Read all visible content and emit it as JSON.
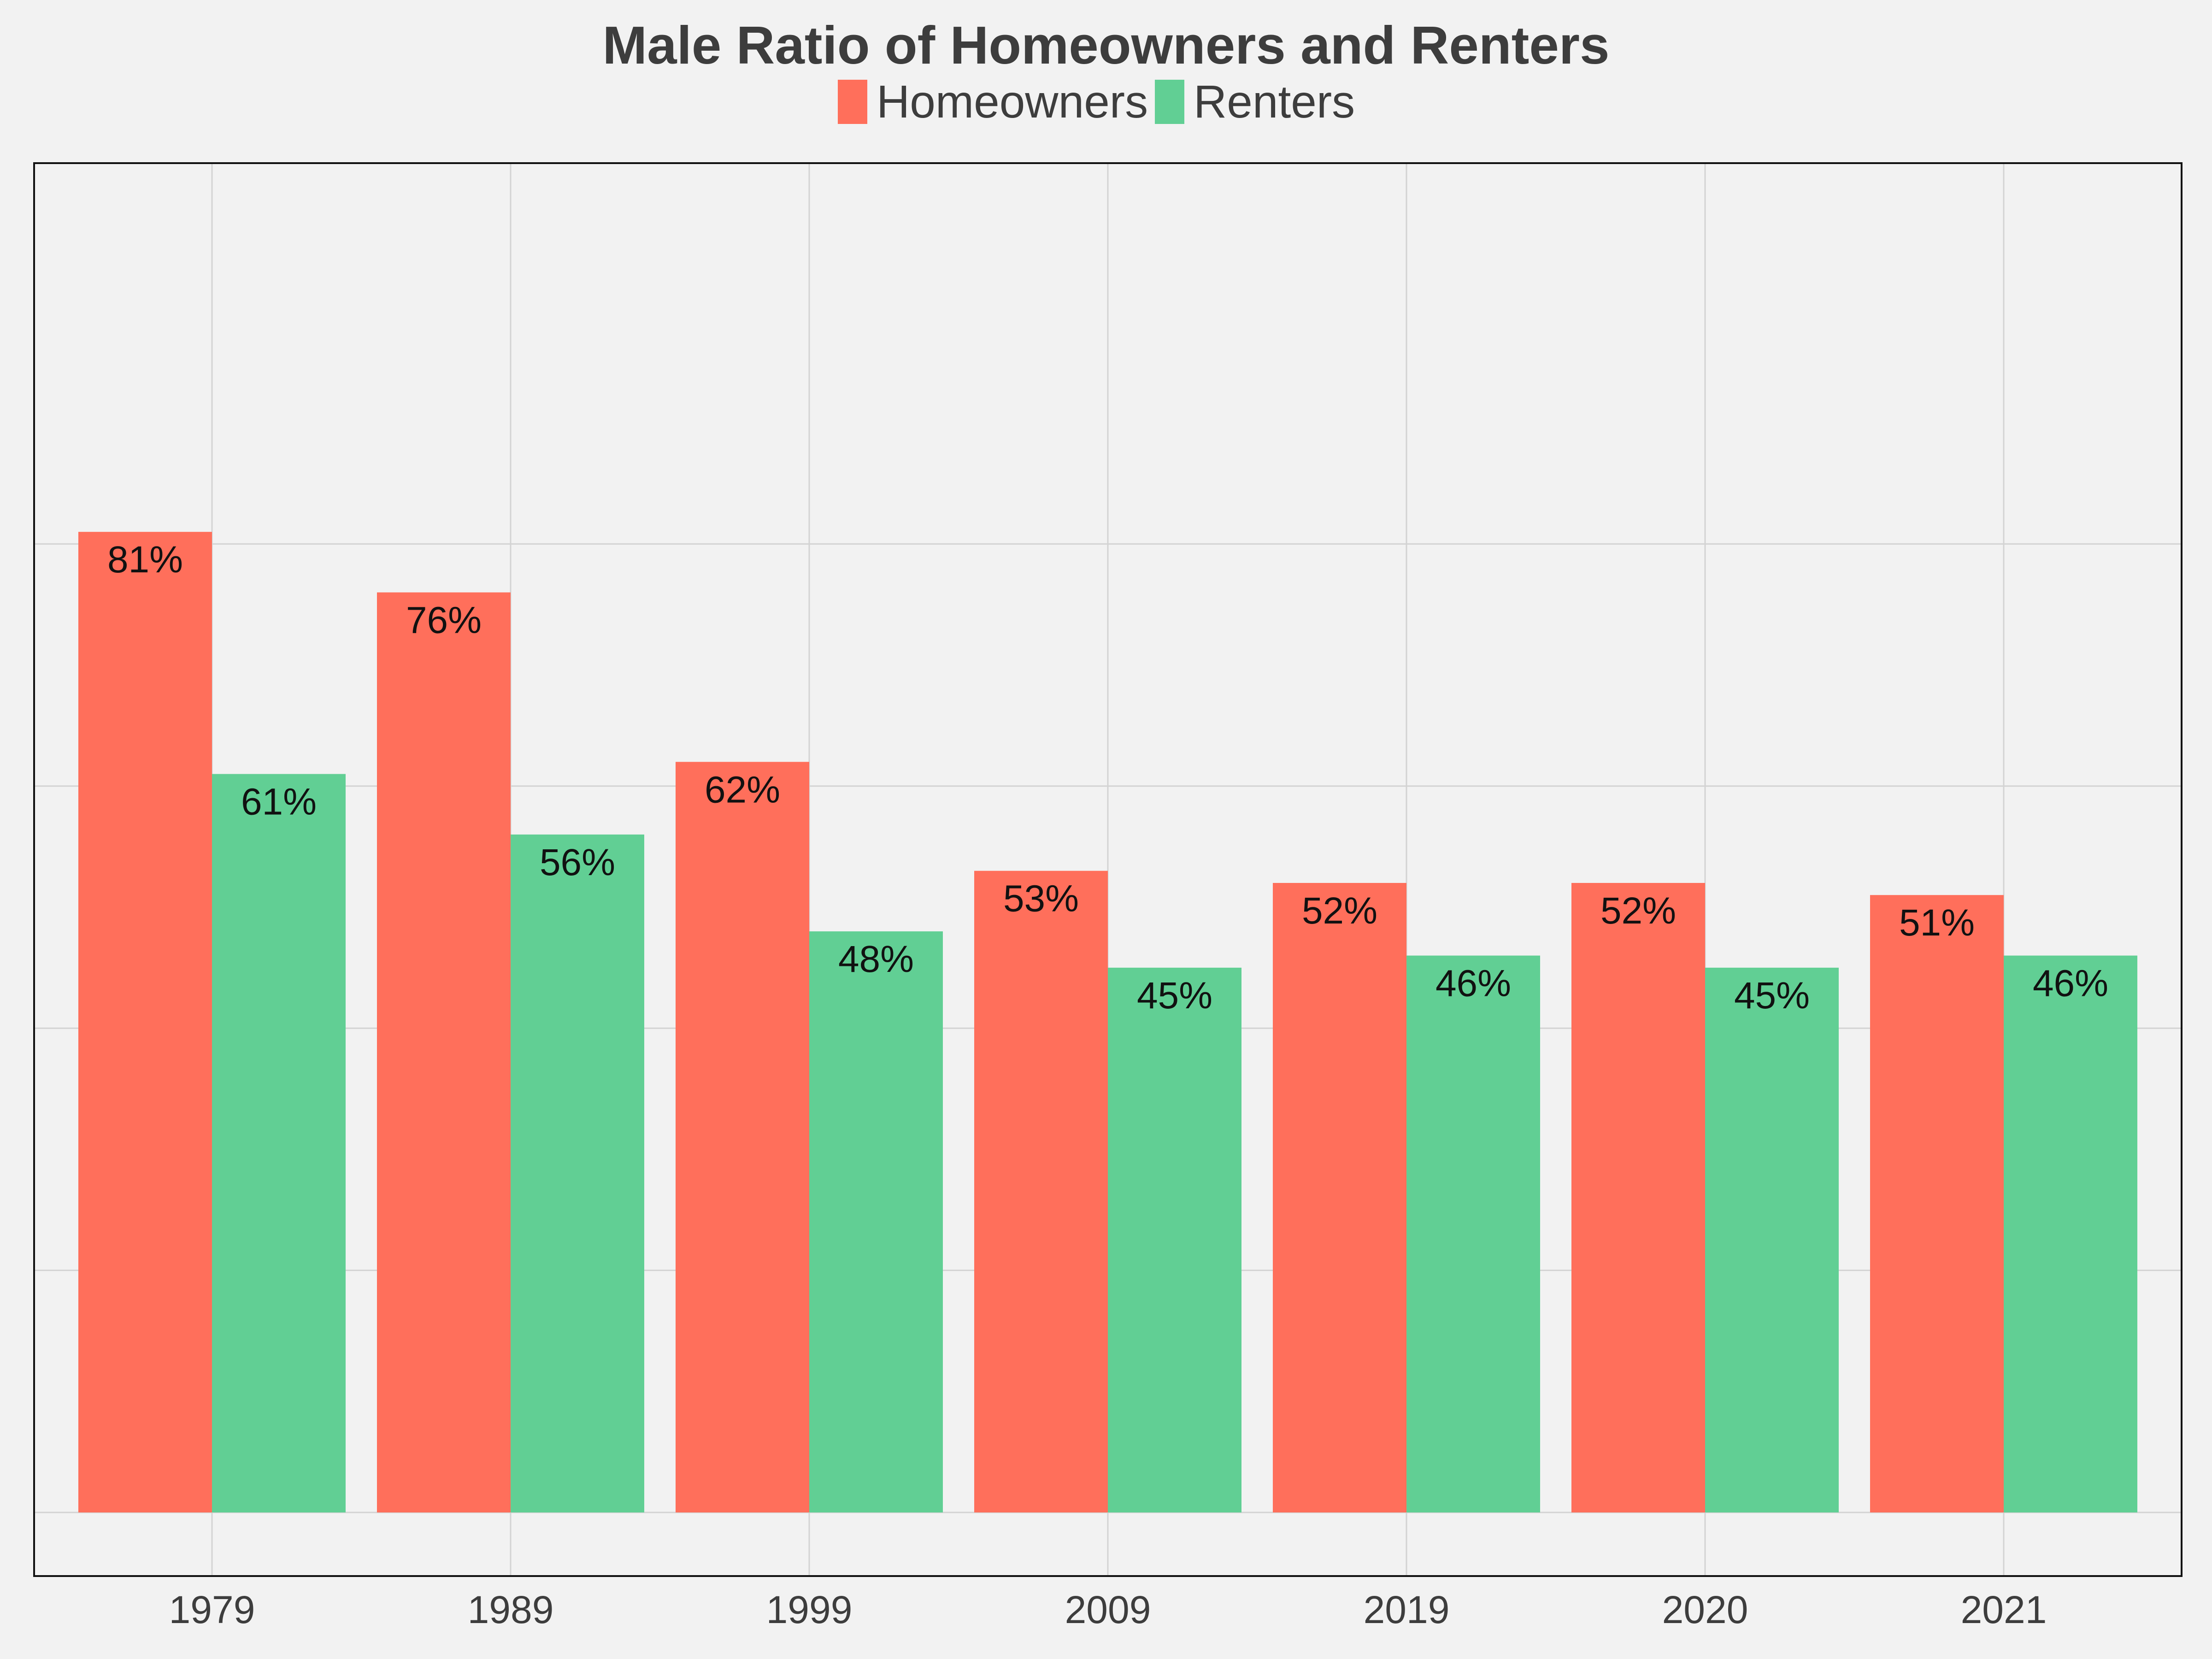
{
  "chart_data": {
    "type": "bar",
    "title": "Male Ratio of Homeowners and Renters",
    "xlabel": "",
    "ylabel": "",
    "categories": [
      "1979",
      "1989",
      "1999",
      "2009",
      "2019",
      "2020",
      "2021"
    ],
    "series": [
      {
        "name": "Homeowners",
        "color": "#ff6f5b",
        "values": [
          0.81,
          0.76,
          0.62,
          0.53,
          0.52,
          0.52,
          0.51
        ],
        "labels": [
          "81%",
          "76%",
          "62%",
          "53%",
          "52%",
          "52%",
          "51%"
        ]
      },
      {
        "name": "Renters",
        "color": "#61cf94",
        "values": [
          0.61,
          0.56,
          0.48,
          0.45,
          0.46,
          0.45,
          0.46
        ],
        "labels": [
          "61%",
          "56%",
          "48%",
          "45%",
          "46%",
          "45%",
          "46%"
        ]
      }
    ],
    "ylim": [
      -0.04,
      0.89
    ],
    "y_gridlines": [
      0,
      0.2,
      0.4,
      0.6,
      0.8
    ],
    "y_tick_labels_shown": false,
    "grid": true,
    "legend_position": "top-center",
    "colors": {
      "background": "#f2f2f2",
      "grid": "#d3d3d3",
      "frame": "#111111",
      "text": "#3d3d3d"
    }
  }
}
